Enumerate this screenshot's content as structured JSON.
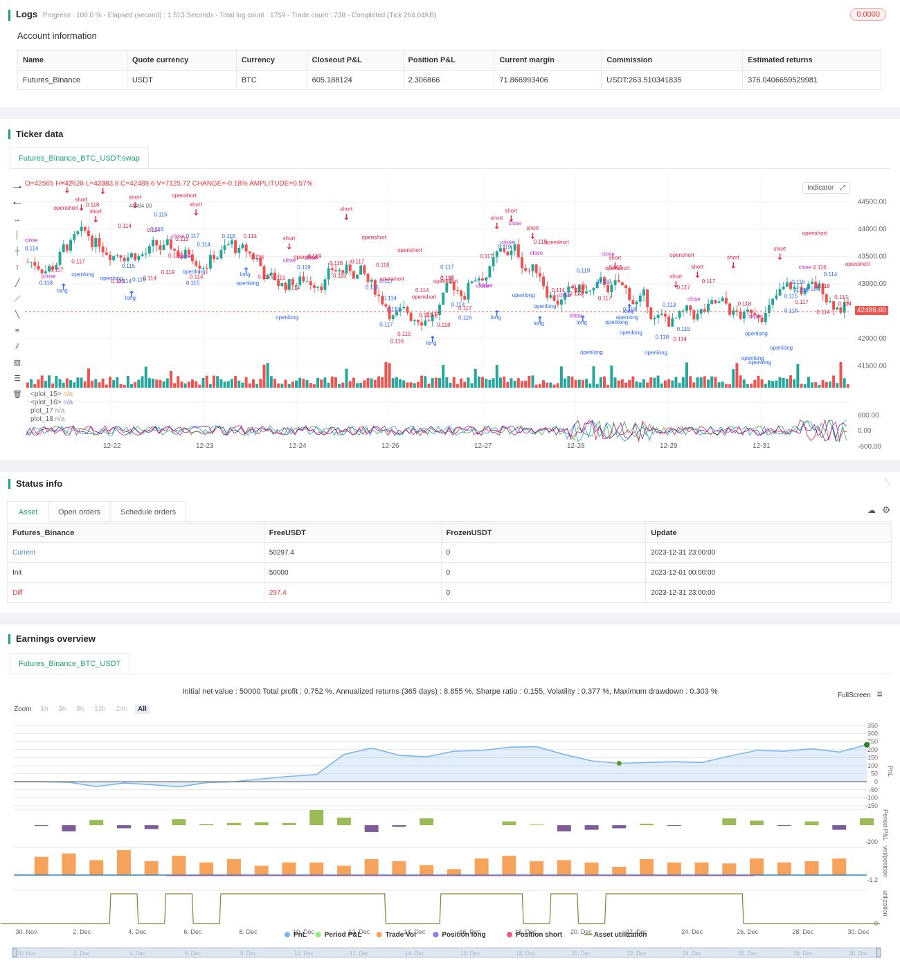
{
  "logs": {
    "title": "Logs",
    "progress_line": "Progress : 100.0 % - Elapsed (second) : 1.513  Seconds - Total log count : 1759 - Trade count : 738 - Completed (Tick 264.04KB)",
    "badge": "0.0000"
  },
  "account": {
    "title": "Account information",
    "headers": [
      "Name",
      "Quote currency",
      "Currency",
      "Closeout P&L",
      "Position P&L",
      "Current margin",
      "Commission",
      "Estimated returns"
    ],
    "row": [
      "Futures_Binance",
      "USDT",
      "BTC",
      "605.188124",
      "2.306866",
      "71.866993406",
      "USDT:263.510341835",
      "376.0406659529981"
    ]
  },
  "ticker": {
    "title": "Ticker data",
    "tab": "Futures_Binance_BTC_USDT:swap",
    "ohlc_line": "O=42565 H=42628 L=42383.8 C=42489.6 V=7125.72 CHANGE=-0.18% AMPLITUDE=0.57%",
    "indicator_btn": "Indicator",
    "last_price": "42489.60",
    "hover_price": "44484.00",
    "price_ticks": [
      "44500.00",
      "44000.00",
      "43500.00",
      "43000.00",
      "42000.00",
      "41500.00"
    ],
    "osc_ticks": [
      "600.00",
      "0.00",
      "-600.00"
    ],
    "date_ticks": [
      "12-22",
      "12-23",
      "12-24",
      "12-26",
      "12-27",
      "12-28",
      "12-29",
      "12-31"
    ],
    "plots": [
      {
        "name": "<plot_15>",
        "value": "n/a"
      },
      {
        "name": "<plot_16>",
        "value": "n/a"
      },
      {
        "name": "plot_17",
        "value": "n/a"
      },
      {
        "name": "plot_18",
        "value": "n/a"
      }
    ],
    "signal_words": [
      "short",
      "close",
      "openshort",
      "long",
      "openlong",
      "0.114",
      "0.113",
      "0.115",
      "0.116",
      "0.117",
      "0.118",
      "0.119"
    ],
    "colors": {
      "up": "#26a69a",
      "down": "#ef5350",
      "long": "#2962ff",
      "short": "#e91e3c",
      "close": "#c026d3"
    }
  },
  "status": {
    "title": "Status info",
    "tabs": [
      "Asset",
      "Open orders",
      "Schedule orders"
    ],
    "headers": [
      "Futures_Binance",
      "FreeUSDT",
      "FrozenUSDT",
      "Update"
    ],
    "rows": [
      [
        "Current",
        "50297.4",
        "0",
        "2023-12-31 23:00:00"
      ],
      [
        "Init",
        "50000",
        "0",
        "2023-12-01 00:00:00"
      ],
      [
        "Diff",
        "297.4",
        "0",
        "2023-12-31 23:00:00"
      ]
    ]
  },
  "earnings": {
    "title": "Earnings overview",
    "tab": "Futures_Binance_BTC_USDT",
    "summary": "Initial net value : 50000 Total profit : 0.752 %, Annualized returns (365 days) : 8.855 %, Sharpe ratio : 0.155, Volatility : 0.377 %, Maximum drawdown : 0.303 %",
    "fullscreen": "FullScreen",
    "zoom_label": "Zoom",
    "zoom_options": [
      "1h",
      "3h",
      "8h",
      "12h",
      "24h",
      "All"
    ],
    "pnl_ticks": [
      "350",
      "300",
      "250",
      "200",
      "150",
      "100",
      "50",
      "0",
      "-50",
      "-100",
      "-150"
    ],
    "axis_titles": [
      "PnL",
      "Period P&L",
      "vol/position",
      "utilization"
    ],
    "period_tick": "-200",
    "vol_tick": "-1.2",
    "util_tick": "0",
    "date_ticks": [
      "30. Nov",
      "2. Dec",
      "4. Dec",
      "6. Dec",
      "8. Dec",
      "10. Dec",
      "12. Dec",
      "14. Dec",
      "16. Dec",
      "18. Dec",
      "20. Dec",
      "22. Dec",
      "24. Dec",
      "26. Dec",
      "28. Dec",
      "30. Dec"
    ],
    "legend": [
      {
        "label": "PnL",
        "color": "#7cb5ec"
      },
      {
        "label": "Period P&L",
        "color": "#90ed7d"
      },
      {
        "label": "Trade Vol",
        "color": "#f7a35c"
      },
      {
        "label": "Position long",
        "color": "#8085e9"
      },
      {
        "label": "Position short",
        "color": "#f15c80"
      },
      {
        "label": "Asset utilization",
        "color": "#8d7b3a"
      }
    ],
    "chart_data": {
      "type": "line",
      "title": "",
      "ylabel": "PnL",
      "ylim": [
        -150,
        350
      ],
      "x": [
        "30. Nov",
        "1. Dec",
        "2. Dec",
        "3. Dec",
        "4. Dec",
        "5. Dec",
        "6. Dec",
        "7. Dec",
        "8. Dec",
        "9. Dec",
        "10. Dec",
        "11. Dec",
        "12. Dec",
        "13. Dec",
        "14. Dec",
        "15. Dec",
        "16. Dec",
        "17. Dec",
        "18. Dec",
        "19. Dec",
        "20. Dec",
        "21. Dec",
        "22. Dec",
        "23. Dec",
        "24. Dec",
        "25. Dec",
        "26. Dec",
        "27. Dec",
        "28. Dec",
        "29. Dec",
        "30. Dec",
        "31. Dec"
      ],
      "series": [
        {
          "values": [
            0,
            0,
            -3,
            -30,
            -8,
            -18,
            -32,
            -5,
            0,
            18,
            33,
            45,
            170,
            210,
            165,
            155,
            190,
            195,
            215,
            218,
            170,
            130,
            115,
            120,
            125,
            120,
            160,
            195,
            190,
            205,
            185,
            230
          ]
        }
      ],
      "period_pnl": [
        0,
        -5,
        -40,
        35,
        -20,
        -25,
        40,
        8,
        15,
        20,
        15,
        100,
        50,
        -45,
        -10,
        45,
        0,
        0,
        25,
        5,
        -40,
        -30,
        -20,
        10,
        -5,
        0,
        45,
        30,
        -5,
        25,
        -30,
        45
      ],
      "trade_vol": [
        0,
        0.55,
        0.65,
        0.45,
        0.75,
        0.42,
        0.58,
        0.38,
        0.48,
        0.28,
        0.38,
        0.38,
        0.28,
        0.48,
        0.42,
        0.3,
        0.18,
        0.5,
        0.58,
        0.42,
        0.45,
        0.38,
        0.25,
        0.48,
        0.38,
        0.38,
        0.35,
        0.5,
        0.38,
        0.42,
        0.5,
        0
      ],
      "utilization": [
        0,
        0,
        0,
        0,
        1,
        0,
        1,
        0,
        1,
        1,
        1,
        1,
        1,
        1,
        0,
        0,
        1,
        1,
        1,
        0,
        1,
        0,
        1,
        1,
        1,
        1,
        1,
        0,
        0,
        0,
        0,
        0
      ]
    }
  }
}
